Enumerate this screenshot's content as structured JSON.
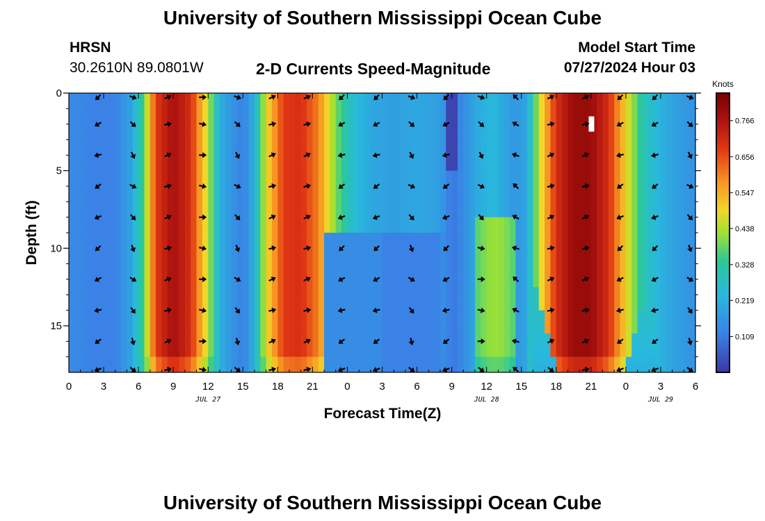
{
  "page": {
    "title": "University of Southern Mississippi Ocean Cube",
    "footer_title": "University of Southern Mississippi Ocean Cube"
  },
  "header": {
    "station": "HRSN",
    "coordinates": "30.2610N  89.0801W",
    "subtitle": "2-D Currents Speed-Magnitude",
    "model_label": "Model Start Time",
    "model_time": "07/27/2024 Hour 03"
  },
  "chart_data": {
    "type": "heatmap",
    "title": "2-D Currents Speed-Magnitude",
    "xlabel": "Forecast Time(Z)",
    "ylabel": "Depth (ft)",
    "x_range": [
      0,
      54
    ],
    "y_range": [
      0,
      18
    ],
    "x_ticks": [
      0,
      3,
      6,
      9,
      12,
      15,
      18,
      21,
      24,
      27,
      30,
      33,
      36,
      39,
      42,
      45,
      48,
      51,
      54
    ],
    "x_tick_labels": [
      "0",
      "3",
      "6",
      "9",
      "12",
      "15",
      "18",
      "21",
      "0",
      "3",
      "6",
      "9",
      "12",
      "15",
      "18",
      "21",
      "0",
      "3",
      "6"
    ],
    "y_ticks": [
      0,
      5,
      10,
      15
    ],
    "y_tick_labels": [
      "0",
      "5",
      "10",
      "15"
    ],
    "date_labels": [
      {
        "x": 12,
        "text": "JUL 27"
      },
      {
        "x": 36,
        "text": "JUL 28"
      },
      {
        "x": 51,
        "text": "JUL 29"
      }
    ],
    "colorbar": {
      "label": "Knots",
      "min": 0.0,
      "max": 0.85,
      "ticks": [
        0.109,
        0.219,
        0.328,
        0.438,
        0.547,
        0.656,
        0.766
      ],
      "tick_labels": [
        "0.109",
        "0.219",
        "0.328",
        "0.438",
        "0.547",
        "0.656",
        "0.766"
      ]
    },
    "arrow_depths": [
      0,
      2,
      4,
      6,
      8,
      10,
      12,
      14,
      16,
      18
    ],
    "arrow_times": [
      3,
      6,
      9,
      12,
      15,
      18,
      21,
      24,
      27,
      30,
      33,
      36,
      39,
      42,
      45,
      48,
      51,
      54
    ],
    "speed_profile": [
      {
        "t": 0,
        "speed": 0.14
      },
      {
        "t": 2,
        "speed": 0.12
      },
      {
        "t": 4,
        "speed": 0.12
      },
      {
        "t": 5.5,
        "speed": 0.2
      },
      {
        "t": 6.5,
        "speed": 0.38
      },
      {
        "t": 7.5,
        "speed": 0.68
      },
      {
        "t": 9,
        "speed": 0.78
      },
      {
        "t": 10.5,
        "speed": 0.7
      },
      {
        "t": 12,
        "speed": 0.45
      },
      {
        "t": 13,
        "speed": 0.22
      },
      {
        "t": 14,
        "speed": 0.16
      },
      {
        "t": 15,
        "speed": 0.12
      },
      {
        "t": 16,
        "speed": 0.22
      },
      {
        "t": 17,
        "speed": 0.48
      },
      {
        "t": 18.5,
        "speed": 0.68
      },
      {
        "t": 20,
        "speed": 0.7
      },
      {
        "t": 21.5,
        "speed": 0.6
      },
      {
        "t": 23,
        "speed": 0.4
      },
      {
        "t": 24.5,
        "speed": 0.25
      },
      {
        "t": 26,
        "speed": 0.2
      },
      {
        "t": 28,
        "speed": 0.18
      },
      {
        "t": 30,
        "speed": 0.2
      },
      {
        "t": 32,
        "speed": 0.18
      },
      {
        "t": 33,
        "speed": 0.1
      },
      {
        "t": 34,
        "speed": 0.14
      },
      {
        "t": 35,
        "speed": 0.2
      },
      {
        "t": 36.5,
        "speed": 0.24
      },
      {
        "t": 37.5,
        "speed": 0.2
      },
      {
        "t": 38.5,
        "speed": 0.16
      },
      {
        "t": 39.5,
        "speed": 0.2
      },
      {
        "t": 40.5,
        "speed": 0.45
      },
      {
        "t": 42,
        "speed": 0.7
      },
      {
        "t": 43.5,
        "speed": 0.8
      },
      {
        "t": 45,
        "speed": 0.8
      },
      {
        "t": 46.5,
        "speed": 0.7
      },
      {
        "t": 48,
        "speed": 0.5
      },
      {
        "t": 49.5,
        "speed": 0.3
      },
      {
        "t": 51,
        "speed": 0.22
      },
      {
        "t": 52.5,
        "speed": 0.18
      },
      {
        "t": 54,
        "speed": 0.15
      }
    ]
  }
}
